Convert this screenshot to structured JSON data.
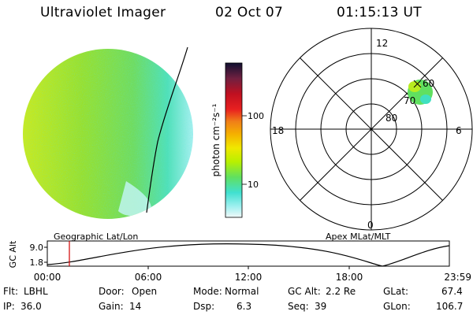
{
  "header": {
    "instrument": "Ultraviolet Imager",
    "date": "02 Oct 07",
    "time": "01:15:13 UT"
  },
  "colorbar": {
    "unit_label": "photon cm⁻²s⁻¹",
    "ticks": [
      "100",
      "10"
    ],
    "colors": [
      "#101030",
      "#a00020",
      "#e01818",
      "#f07818",
      "#f5a000",
      "#f0e000",
      "#c8f000",
      "#80e040",
      "#60e880",
      "#40e0c8",
      "#a0f0f0",
      "#e8f8f8"
    ]
  },
  "panels": {
    "left_caption": "Geographic Lat/Lon",
    "right_caption": "Apex MLat/MLT"
  },
  "polar": {
    "mlt_labels": {
      "top": "12",
      "left": "18",
      "right": "6",
      "bottom": "0"
    },
    "lat_labels": [
      "60",
      "70",
      "80"
    ]
  },
  "altitude_plot": {
    "ylabel": "GC Alt",
    "yticks": [
      "9.0",
      "1.8"
    ],
    "xticks": [
      "00:00",
      "06:00",
      "12:00",
      "18:00",
      "23:59"
    ]
  },
  "info": {
    "row1": [
      {
        "label": "Flt:",
        "value": "LBHL"
      },
      {
        "label": "Door:",
        "value": "Open"
      },
      {
        "label": "Mode:",
        "value": "Normal"
      },
      {
        "label": "GC Alt:",
        "value": "2.2 Re"
      },
      {
        "label": "GLat:",
        "value": "67.4"
      }
    ],
    "row2": [
      {
        "label": "IP:",
        "value": "36.0"
      },
      {
        "label": "Gain:",
        "value": "14"
      },
      {
        "label": "Dsp:",
        "value": "6.3"
      },
      {
        "label": "Seq:",
        "value": "39"
      },
      {
        "label": "GLon:",
        "value": "106.7"
      }
    ]
  },
  "image_colors": {
    "base": "#8ee030",
    "warm": "#c8ea20",
    "cool": "#50e0b8",
    "edge": "#b0f0f0",
    "aurora": "#60e060"
  }
}
